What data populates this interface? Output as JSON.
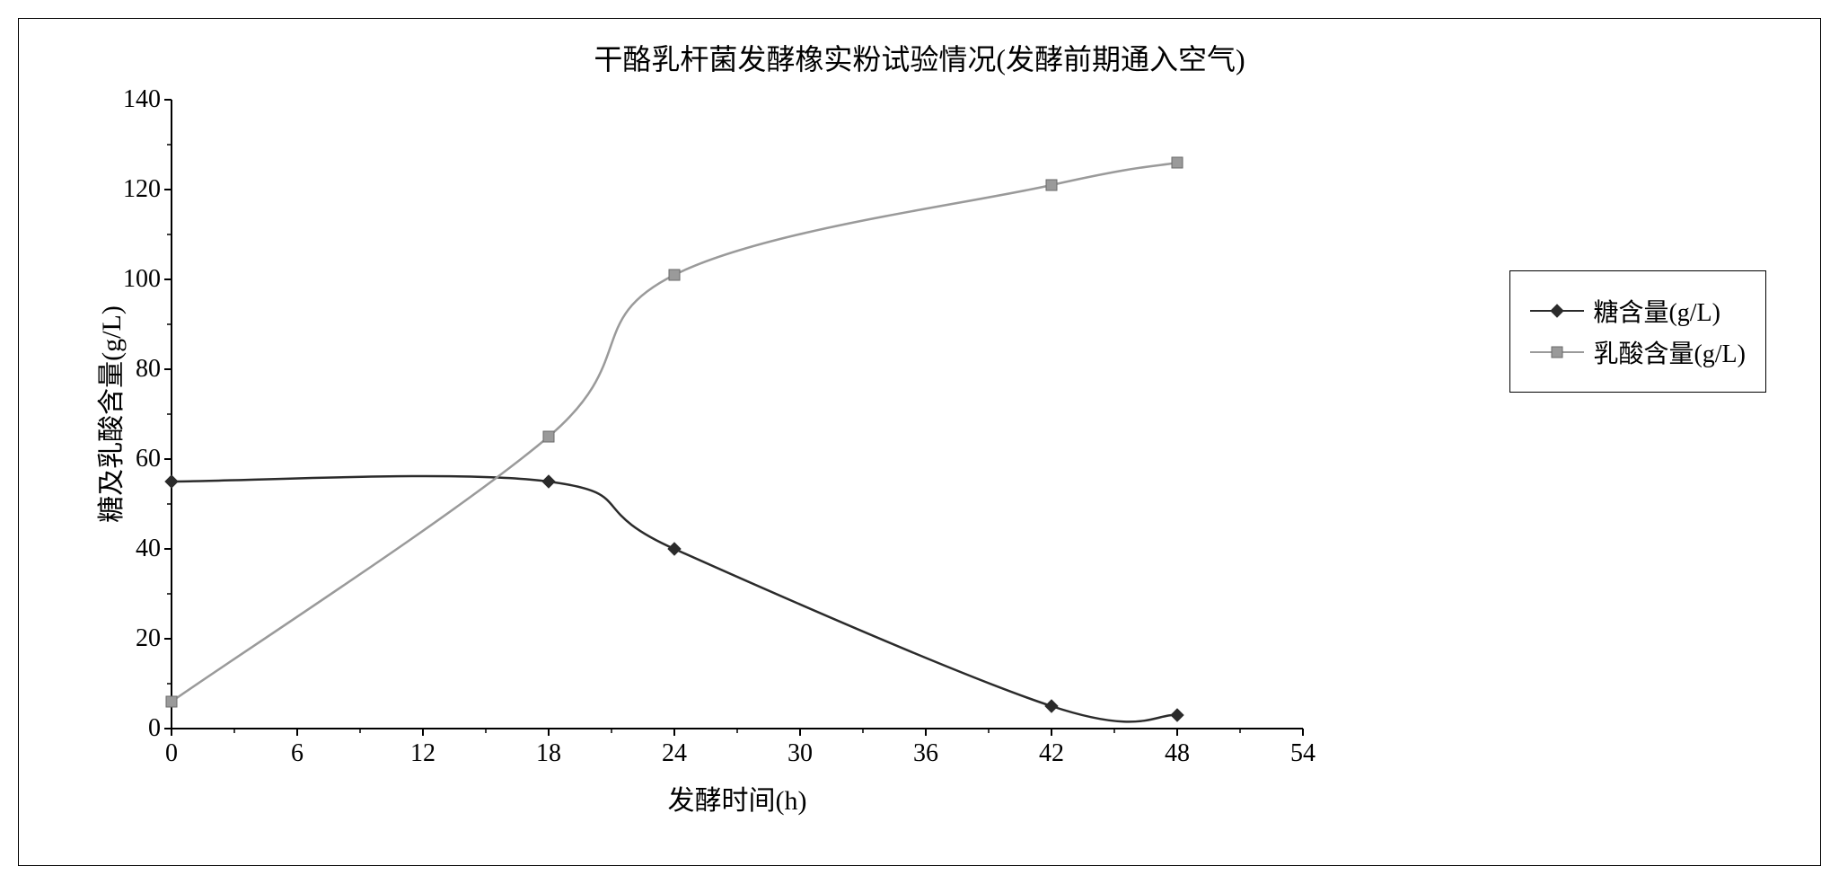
{
  "chart": {
    "type": "line",
    "title": "干酪乳杆菌发酵橡实粉试验情况(发酵前期通入空气)",
    "title_fontsize": 32,
    "xlabel": "发酵时间(h)",
    "ylabel": "糖及乳酸含量(g/L)",
    "label_fontsize": 30,
    "tick_fontsize": 28,
    "background_color": "#ffffff",
    "border_color": "#000000",
    "axis_color": "#000000",
    "xlim": [
      0,
      54
    ],
    "ylim": [
      0,
      140
    ],
    "xticks": [
      0,
      6,
      12,
      18,
      24,
      30,
      36,
      42,
      48,
      54
    ],
    "yticks": [
      0,
      20,
      40,
      60,
      80,
      100,
      120,
      140
    ],
    "tick_length_major": 8,
    "tick_length_minor": 5,
    "minor_tick_between": 1,
    "series": [
      {
        "name": "糖含量(g/L)",
        "x": [
          0,
          18,
          24,
          42,
          48
        ],
        "y": [
          55,
          55,
          40,
          5,
          3
        ],
        "line_color": "#2b2b2b",
        "line_width": 2.5,
        "marker": "diamond",
        "marker_size": 14,
        "marker_fill": "#2b2b2b",
        "marker_stroke": "#2b2b2b"
      },
      {
        "name": "乳酸含量(g/L)",
        "x": [
          0,
          18,
          24,
          42,
          48
        ],
        "y": [
          6,
          65,
          101,
          121,
          126
        ],
        "line_color": "#9a9a9a",
        "line_width": 2.5,
        "marker": "square",
        "marker_size": 12,
        "marker_fill": "#9a9a9a",
        "marker_stroke": "#6a6a6a"
      }
    ],
    "legend": {
      "position": "right",
      "border_color": "#000000",
      "background_color": "#ffffff",
      "fontsize": 28
    }
  }
}
